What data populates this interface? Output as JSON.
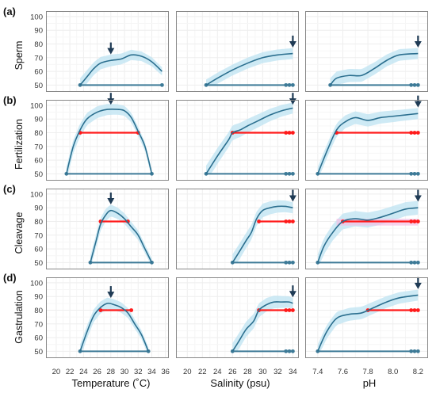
{
  "figure": {
    "panel_labels": [
      "(a)",
      "(b)",
      "(c)",
      "(d)"
    ],
    "row_labels": [
      "Sperm",
      "Fertilization",
      "Cleavage",
      "Gastrulation"
    ],
    "column_xlabels": [
      "Temperature (˚C)",
      "Salinity (psu)",
      "pH"
    ],
    "x_ticks": [
      [
        "20",
        "22",
        "24",
        "26",
        "28",
        "30",
        "32",
        "34",
        "36"
      ],
      [
        "20",
        "22",
        "24",
        "26",
        "28",
        "30",
        "32",
        "34"
      ],
      [
        "7.4",
        "7.6",
        "7.8",
        "8.0",
        "8.2"
      ]
    ],
    "y_ticks": [
      "50",
      "60",
      "70",
      "80",
      "90",
      "100"
    ]
  },
  "colors": {
    "curve": "#2b6f8f",
    "band": "#bde3f2",
    "baseline": "#3d7a97",
    "threshold": "#ff1a1a",
    "arrow": "#1f3b55",
    "pink_band": "#f4c1e6",
    "panel_border": "#888888",
    "grid": "#eeeeee"
  },
  "chart_data": [
    {
      "type": "line",
      "row": "Sperm",
      "column": "Temperature",
      "xlim": [
        18.5,
        36.5
      ],
      "ylim": [
        45,
        104
      ],
      "curve": [
        [
          23.5,
          50
        ],
        [
          24.5,
          56
        ],
        [
          25.5,
          62
        ],
        [
          26.5,
          66
        ],
        [
          28,
          68
        ],
        [
          29.5,
          69
        ],
        [
          31,
          72
        ],
        [
          32.5,
          71
        ],
        [
          34,
          67
        ],
        [
          35.5,
          60
        ]
      ],
      "band": [
        5,
        3
      ],
      "baseline": {
        "y": 50,
        "from": 23.5,
        "to": 35.5,
        "end_dots": 1
      },
      "arrow_x": 28
    },
    {
      "type": "line",
      "row": "Sperm",
      "column": "Salinity",
      "xlim": [
        18.5,
        34.8
      ],
      "ylim": [
        45,
        104
      ],
      "curve": [
        [
          22.5,
          50
        ],
        [
          24,
          55
        ],
        [
          26,
          61
        ],
        [
          28,
          66
        ],
        [
          30,
          70
        ],
        [
          32,
          72
        ],
        [
          34,
          73
        ]
      ],
      "band": [
        4,
        4
      ],
      "baseline": {
        "y": 50,
        "from": 22.5,
        "to": 34,
        "end_dots": 3
      },
      "arrow_x": 34
    },
    {
      "type": "line",
      "row": "Sperm",
      "column": "pH",
      "xlim": [
        7.3,
        8.28
      ],
      "ylim": [
        45,
        104
      ],
      "curve": [
        [
          7.5,
          50
        ],
        [
          7.55,
          55
        ],
        [
          7.65,
          57
        ],
        [
          7.75,
          57
        ],
        [
          7.85,
          62
        ],
        [
          7.95,
          68
        ],
        [
          8.05,
          72
        ],
        [
          8.2,
          73
        ]
      ],
      "band": [
        5,
        4
      ],
      "baseline": {
        "y": 50,
        "from": 7.5,
        "to": 8.2,
        "end_dots": 3
      },
      "arrow_x": 8.2
    },
    {
      "type": "line",
      "row": "Fertilization",
      "column": "Temperature",
      "xlim": [
        18.5,
        36.5
      ],
      "ylim": [
        45,
        104
      ],
      "curve": [
        [
          21.5,
          50
        ],
        [
          22.5,
          70
        ],
        [
          23.5,
          82
        ],
        [
          24.5,
          90
        ],
        [
          26,
          95
        ],
        [
          27.5,
          97
        ],
        [
          29,
          97
        ],
        [
          30,
          96
        ],
        [
          31,
          91
        ],
        [
          32,
          81
        ],
        [
          33,
          70
        ],
        [
          34,
          50
        ]
      ],
      "band": [
        5,
        3
      ],
      "baseline": {
        "y": 50,
        "from": 21.5,
        "to": 34,
        "end_dots": 1
      },
      "threshold": {
        "y": 80,
        "from": 23.5,
        "to": 32
      },
      "arrow_x": 28
    },
    {
      "type": "line",
      "row": "Fertilization",
      "column": "Salinity",
      "xlim": [
        18.5,
        34.8
      ],
      "ylim": [
        45,
        104
      ],
      "curve": [
        [
          22.5,
          50
        ],
        [
          24,
          63
        ],
        [
          25.5,
          75
        ],
        [
          26,
          80
        ],
        [
          27,
          82
        ],
        [
          28,
          85
        ],
        [
          29.5,
          89
        ],
        [
          31,
          93
        ],
        [
          32.5,
          96
        ],
        [
          34,
          98
        ]
      ],
      "band": [
        6,
        4
      ],
      "baseline": {
        "y": 50,
        "from": 22.5,
        "to": 34,
        "end_dots": 3
      },
      "threshold": {
        "y": 80,
        "from": 26,
        "to": 34,
        "end_dots": 3
      },
      "arrow_x": 34
    },
    {
      "type": "line",
      "row": "Fertilization",
      "column": "pH",
      "xlim": [
        7.3,
        8.28
      ],
      "ylim": [
        45,
        104
      ],
      "curve": [
        [
          7.4,
          50
        ],
        [
          7.48,
          68
        ],
        [
          7.55,
          82
        ],
        [
          7.62,
          88
        ],
        [
          7.7,
          91
        ],
        [
          7.8,
          89
        ],
        [
          7.9,
          91
        ],
        [
          8.0,
          92
        ],
        [
          8.1,
          93
        ],
        [
          8.2,
          94
        ]
      ],
      "band": [
        5,
        4
      ],
      "baseline": {
        "y": 50,
        "from": 7.4,
        "to": 8.2,
        "end_dots": 3
      },
      "threshold": {
        "y": 80,
        "from": 7.55,
        "to": 8.2,
        "end_dots": 3
      },
      "arrow_x": 8.2
    },
    {
      "type": "line",
      "row": "Cleavage",
      "column": "Temperature",
      "xlim": [
        18.5,
        36.5
      ],
      "ylim": [
        45,
        104
      ],
      "curve": [
        [
          25,
          50
        ],
        [
          25.8,
          65
        ],
        [
          26.5,
          78
        ],
        [
          27.3,
          85
        ],
        [
          28,
          88
        ],
        [
          29,
          86
        ],
        [
          30,
          82
        ],
        [
          31,
          76
        ],
        [
          32,
          70
        ],
        [
          33,
          60
        ],
        [
          34,
          50
        ]
      ],
      "band": [
        5,
        3
      ],
      "baseline": {
        "y": 50,
        "from": 25,
        "to": 34,
        "end_dots": 1
      },
      "threshold": {
        "y": 80,
        "from": 26.5,
        "to": 30.5
      },
      "arrow_x": 28
    },
    {
      "type": "line",
      "row": "Cleavage",
      "column": "Salinity",
      "xlim": [
        18.5,
        34.8
      ],
      "ylim": [
        45,
        104
      ],
      "curve": [
        [
          26,
          50
        ],
        [
          26.8,
          57
        ],
        [
          27.8,
          66
        ],
        [
          28.5,
          72
        ],
        [
          29.2,
          82
        ],
        [
          30,
          88
        ],
        [
          31,
          90
        ],
        [
          32,
          91
        ],
        [
          33,
          91
        ],
        [
          34,
          90
        ]
      ],
      "band": [
        6,
        4
      ],
      "baseline": {
        "y": 50,
        "from": 26,
        "to": 34,
        "end_dots": 3
      },
      "threshold": {
        "y": 80,
        "from": 29.5,
        "to": 34,
        "end_dots": 3
      },
      "arrow_x": 34
    },
    {
      "type": "line",
      "row": "Cleavage",
      "column": "pH",
      "xlim": [
        7.3,
        8.28
      ],
      "ylim": [
        45,
        104
      ],
      "curve": [
        [
          7.4,
          50
        ],
        [
          7.45,
          62
        ],
        [
          7.52,
          72
        ],
        [
          7.6,
          80
        ],
        [
          7.7,
          82
        ],
        [
          7.8,
          81
        ],
        [
          7.9,
          83
        ],
        [
          8.0,
          86
        ],
        [
          8.1,
          89
        ],
        [
          8.2,
          90
        ]
      ],
      "band": [
        6,
        5
      ],
      "baseline": {
        "y": 50,
        "from": 7.4,
        "to": 8.2,
        "end_dots": 3
      },
      "threshold": {
        "y": 80,
        "from": 7.6,
        "to": 8.2,
        "end_dots": 3
      },
      "pink": true,
      "arrow_x": 8.2
    },
    {
      "type": "line",
      "row": "Gastrulation",
      "column": "Temperature",
      "xlim": [
        18.5,
        36.5
      ],
      "ylim": [
        45,
        104
      ],
      "curve": [
        [
          23.5,
          50
        ],
        [
          24.5,
          64
        ],
        [
          25.5,
          76
        ],
        [
          26.5,
          82
        ],
        [
          27.5,
          85
        ],
        [
          28.5,
          84
        ],
        [
          29.5,
          82
        ],
        [
          30.5,
          78
        ],
        [
          31.5,
          70
        ],
        [
          32.5,
          62
        ],
        [
          33.5,
          50
        ]
      ],
      "band": [
        5,
        3
      ],
      "baseline": {
        "y": 50,
        "from": 23.5,
        "to": 33.5,
        "end_dots": 1
      },
      "threshold": {
        "y": 80,
        "from": 26.5,
        "to": 31
      },
      "arrow_x": 28
    },
    {
      "type": "line",
      "row": "Gastrulation",
      "column": "Salinity",
      "xlim": [
        18.5,
        34.8
      ],
      "ylim": [
        45,
        104
      ],
      "curve": [
        [
          26,
          50
        ],
        [
          26.8,
          57
        ],
        [
          27.8,
          66
        ],
        [
          28.8,
          72
        ],
        [
          29.5,
          80
        ],
        [
          30.5,
          84
        ],
        [
          31.5,
          86
        ],
        [
          32.5,
          86
        ],
        [
          33.5,
          86
        ],
        [
          34,
          85
        ]
      ],
      "band": [
        6,
        4
      ],
      "baseline": {
        "y": 50,
        "from": 26,
        "to": 34,
        "end_dots": 3
      },
      "threshold": {
        "y": 80,
        "from": 29.5,
        "to": 34,
        "end_dots": 3
      },
      "arrow_x": 34
    },
    {
      "type": "line",
      "row": "Gastrulation",
      "column": "pH",
      "xlim": [
        7.3,
        8.28
      ],
      "ylim": [
        45,
        104
      ],
      "curve": [
        [
          7.4,
          50
        ],
        [
          7.47,
          64
        ],
        [
          7.55,
          74
        ],
        [
          7.65,
          77
        ],
        [
          7.75,
          78
        ],
        [
          7.85,
          82
        ],
        [
          7.95,
          86
        ],
        [
          8.05,
          89
        ],
        [
          8.2,
          91
        ]
      ],
      "band": [
        5,
        4
      ],
      "baseline": {
        "y": 50,
        "from": 7.4,
        "to": 8.2,
        "end_dots": 3
      },
      "threshold": {
        "y": 80,
        "from": 7.8,
        "to": 8.2,
        "end_dots": 3
      },
      "arrow_x": 8.2
    }
  ]
}
